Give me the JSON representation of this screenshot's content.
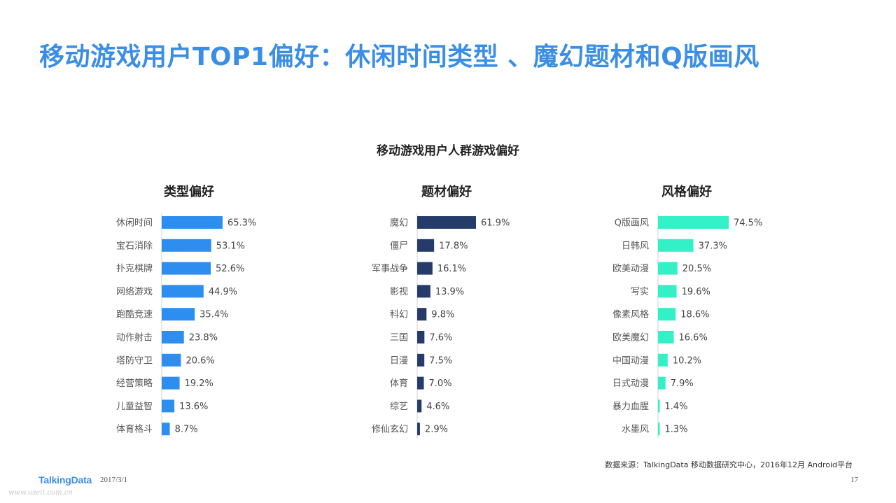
{
  "page": {
    "title": "移动游戏用户TOP1偏好：休闲时间类型 、魔幻题材和Q版画风",
    "source": "数据来源：TalkingData 移动数据研究中心，2016年12月 Android平台",
    "brand": "TalkingData",
    "date": "2017/3/1",
    "page_number": "17",
    "watermark": "www.useit.com.cn"
  },
  "chart_data": {
    "title": "移动游戏用户人群游戏偏好",
    "charts": [
      {
        "type": "bar",
        "orientation": "horizontal",
        "title": "类型偏好",
        "color": "#2e8ef0",
        "categories": [
          "休闲时间",
          "宝石消除",
          "扑克棋牌",
          "网络游戏",
          "跑酷竞速",
          "动作射击",
          "塔防守卫",
          "经营策略",
          "儿童益智",
          "体育格斗"
        ],
        "values": [
          65.3,
          53.1,
          52.6,
          44.9,
          35.4,
          23.8,
          20.6,
          19.2,
          13.6,
          8.7
        ],
        "labels": [
          "65.3%",
          "53.1%",
          "52.6%",
          "44.9%",
          "35.4%",
          "23.8%",
          "20.6%",
          "19.2%",
          "13.6%",
          "8.7%"
        ],
        "unit": "%"
      },
      {
        "type": "bar",
        "orientation": "horizontal",
        "title": "题材偏好",
        "color": "#253c6b",
        "categories": [
          "魔幻",
          "僵尸",
          "军事战争",
          "影视",
          "科幻",
          "三国",
          "日漫",
          "体育",
          "综艺",
          "修仙玄幻"
        ],
        "values": [
          61.9,
          17.8,
          16.1,
          13.9,
          9.8,
          7.6,
          7.5,
          7.0,
          4.6,
          2.9
        ],
        "labels": [
          "61.9%",
          "17.8%",
          "16.1%",
          "13.9%",
          "9.8%",
          "7.6%",
          "7.5%",
          "7.0%",
          "4.6%",
          "2.9%"
        ],
        "unit": "%"
      },
      {
        "type": "bar",
        "orientation": "horizontal",
        "title": "风格偏好",
        "color": "#33f0c6",
        "categories": [
          "Q版画风",
          "日韩风",
          "欧美动漫",
          "写实",
          "像素风格",
          "欧美魔幻",
          "中国动漫",
          "日式动漫",
          "暴力血腥",
          "水墨风"
        ],
        "values": [
          74.5,
          37.3,
          20.5,
          19.6,
          18.6,
          16.6,
          10.2,
          7.9,
          1.4,
          1.3
        ],
        "labels": [
          "74.5%",
          "37.3%",
          "20.5%",
          "19.6%",
          "18.6%",
          "16.6%",
          "10.2%",
          "7.9%",
          "1.4%",
          "1.3%"
        ],
        "unit": "%"
      }
    ]
  }
}
